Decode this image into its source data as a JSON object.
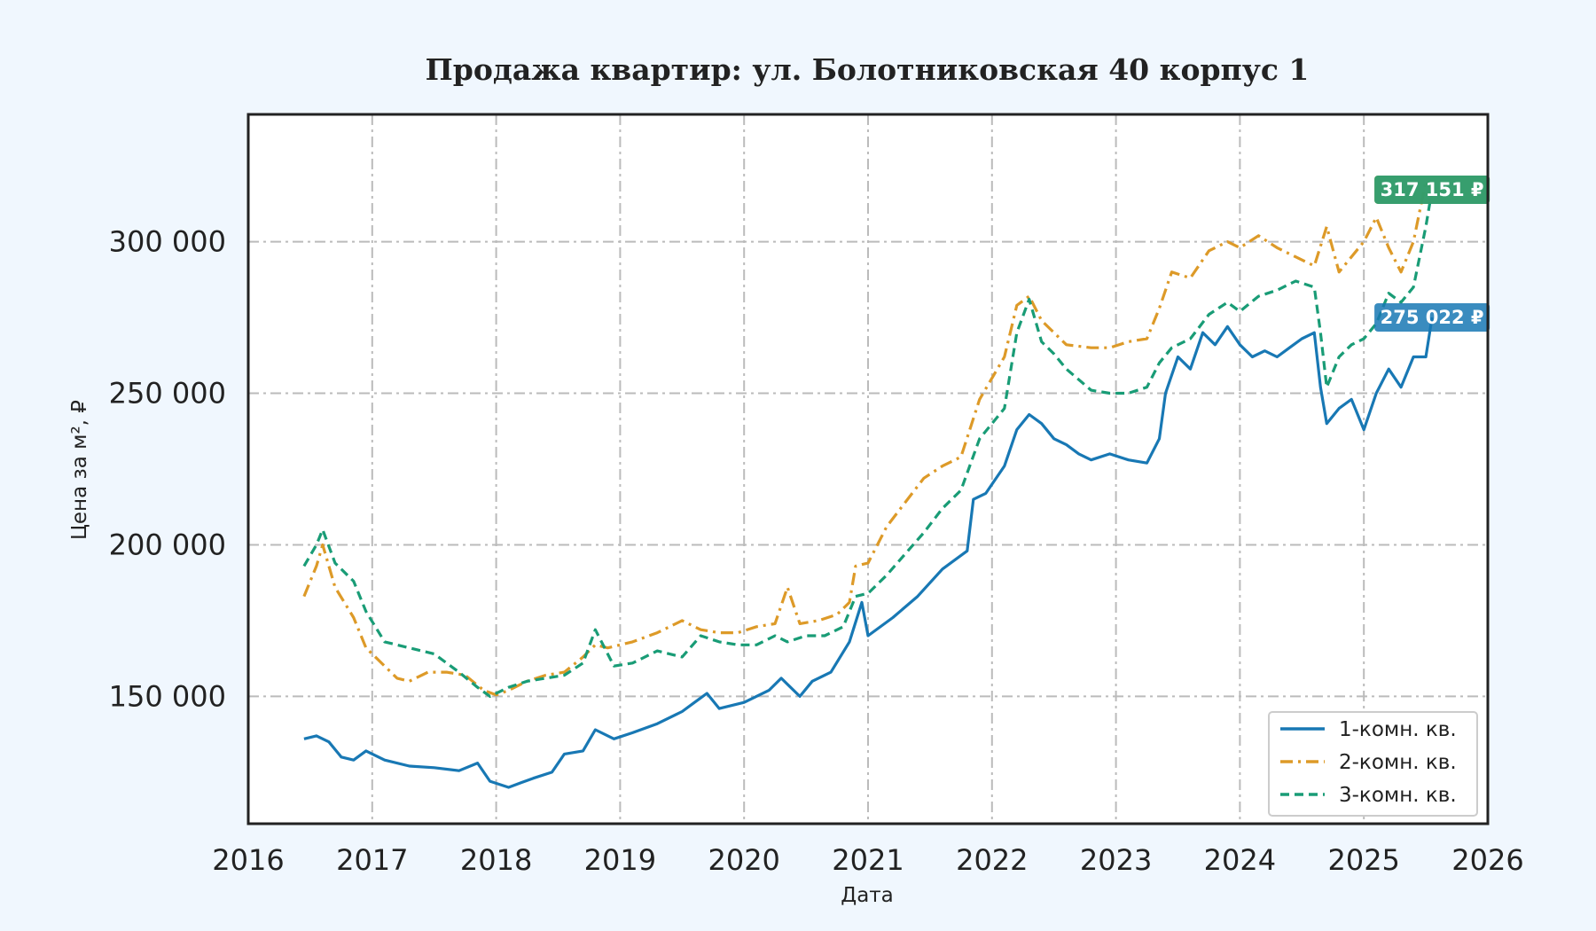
{
  "chart_data": {
    "type": "line",
    "title": "Продажа квартир: ул. Болотниковская 40 корпус 1",
    "xlabel": "Дата",
    "ylabel": "Цена за м², ₽",
    "xlim": [
      2016.0,
      2026.0
    ],
    "ylim": [
      108000,
      342000
    ],
    "x_ticks": [
      {
        "value": 2016,
        "label": "2016"
      },
      {
        "value": 2017,
        "label": "2017"
      },
      {
        "value": 2018,
        "label": "2018"
      },
      {
        "value": 2019,
        "label": "2019"
      },
      {
        "value": 2020,
        "label": "2020"
      },
      {
        "value": 2021,
        "label": "2021"
      },
      {
        "value": 2022,
        "label": "2022"
      },
      {
        "value": 2023,
        "label": "2023"
      },
      {
        "value": 2024,
        "label": "2024"
      },
      {
        "value": 2025,
        "label": "2025"
      },
      {
        "value": 2026,
        "label": "2026"
      }
    ],
    "y_ticks": [
      {
        "value": 150000,
        "label": "150 000"
      },
      {
        "value": 200000,
        "label": "200 000"
      },
      {
        "value": 250000,
        "label": "250 000"
      },
      {
        "value": 300000,
        "label": "300 000"
      }
    ],
    "grid": true,
    "legend_position": "bottom-right",
    "series": [
      {
        "name": "1-комн. кв.",
        "color": "#1878b4",
        "dash": "solid",
        "x": [
          2016.45,
          2016.55,
          2016.65,
          2016.75,
          2016.85,
          2016.95,
          2017.1,
          2017.3,
          2017.5,
          2017.7,
          2017.85,
          2017.95,
          2018.1,
          2018.2,
          2018.3,
          2018.45,
          2018.55,
          2018.7,
          2018.8,
          2018.95,
          2019.1,
          2019.3,
          2019.5,
          2019.6,
          2019.7,
          2019.8,
          2020.0,
          2020.2,
          2020.3,
          2020.45,
          2020.55,
          2020.7,
          2020.85,
          2020.95,
          2021.0,
          2021.2,
          2021.4,
          2021.6,
          2021.8,
          2021.85,
          2021.95,
          2022.1,
          2022.2,
          2022.3,
          2022.4,
          2022.5,
          2022.6,
          2022.7,
          2022.8,
          2022.95,
          2023.1,
          2023.25,
          2023.35,
          2023.4,
          2023.5,
          2023.6,
          2023.7,
          2023.8,
          2023.9,
          2024.0,
          2024.1,
          2024.2,
          2024.3,
          2024.4,
          2024.5,
          2024.6,
          2024.65,
          2024.7,
          2024.8,
          2024.9,
          2025.0,
          2025.1,
          2025.2,
          2025.3,
          2025.4,
          2025.5,
          2025.55
        ],
        "y": [
          136000,
          137000,
          135000,
          130000,
          129000,
          132000,
          129000,
          127000,
          126500,
          125500,
          128000,
          122000,
          120000,
          121500,
          123000,
          125000,
          131000,
          132000,
          139000,
          136000,
          138000,
          141000,
          145000,
          148000,
          151000,
          146000,
          148000,
          152000,
          156000,
          150000,
          155000,
          158000,
          168000,
          181000,
          170000,
          176000,
          183000,
          192000,
          198000,
          215000,
          217000,
          226000,
          238000,
          243000,
          240000,
          235000,
          233000,
          230000,
          228000,
          230000,
          228000,
          227000,
          235000,
          250000,
          262000,
          258000,
          270000,
          266000,
          272000,
          266000,
          262000,
          264000,
          262000,
          265000,
          268000,
          270000,
          252000,
          240000,
          245000,
          248000,
          238000,
          250000,
          258000,
          252000,
          262000,
          262000,
          275022
        ],
        "end_label": "275 022 ₽"
      },
      {
        "name": "2-комн. кв.",
        "color": "#dd9a28",
        "dash": "dashdot",
        "x": [
          2016.45,
          2016.55,
          2016.6,
          2016.7,
          2016.85,
          2016.95,
          2017.1,
          2017.2,
          2017.3,
          2017.45,
          2017.6,
          2017.75,
          2017.9,
          2018.0,
          2018.1,
          2018.25,
          2018.4,
          2018.55,
          2018.7,
          2018.8,
          2018.9,
          2019.1,
          2019.3,
          2019.5,
          2019.65,
          2019.8,
          2019.95,
          2020.1,
          2020.25,
          2020.35,
          2020.45,
          2020.6,
          2020.75,
          2020.85,
          2020.9,
          2021.0,
          2021.15,
          2021.3,
          2021.45,
          2021.6,
          2021.75,
          2021.9,
          2022.0,
          2022.1,
          2022.2,
          2022.3,
          2022.4,
          2022.5,
          2022.6,
          2022.8,
          2022.95,
          2023.1,
          2023.25,
          2023.35,
          2023.45,
          2023.6,
          2023.75,
          2023.9,
          2024.0,
          2024.15,
          2024.3,
          2024.45,
          2024.6,
          2024.7,
          2024.8,
          2024.9,
          2025.0,
          2025.1,
          2025.2,
          2025.3,
          2025.4,
          2025.5,
          2025.55
        ],
        "y": [
          183000,
          193000,
          200000,
          186000,
          176000,
          166000,
          160000,
          156000,
          155000,
          158000,
          158000,
          157000,
          152000,
          150500,
          152000,
          155000,
          157000,
          158000,
          163000,
          167000,
          166000,
          168000,
          171000,
          175000,
          172000,
          171000,
          171000,
          173000,
          174000,
          186000,
          174000,
          175000,
          177000,
          181000,
          193000,
          194000,
          206000,
          214000,
          222000,
          226000,
          229000,
          248000,
          255000,
          262000,
          279000,
          282000,
          274000,
          270000,
          266000,
          265000,
          265000,
          267000,
          268000,
          278000,
          290000,
          288000,
          297000,
          300000,
          298000,
          302000,
          298000,
          295000,
          292000,
          305000,
          290000,
          295000,
          300000,
          308000,
          298000,
          290000,
          300000,
          320000,
          317151
        ],
        "end_label": "317 151 ₽"
      },
      {
        "name": "3-комн. кв.",
        "color": "#199c76",
        "dash": "dashed",
        "x": [
          2016.45,
          2016.55,
          2016.6,
          2016.7,
          2016.85,
          2016.95,
          2017.1,
          2017.3,
          2017.5,
          2017.7,
          2017.85,
          2017.95,
          2018.1,
          2018.25,
          2018.4,
          2018.55,
          2018.7,
          2018.8,
          2018.95,
          2019.1,
          2019.3,
          2019.5,
          2019.65,
          2019.8,
          2019.95,
          2020.1,
          2020.25,
          2020.35,
          2020.5,
          2020.65,
          2020.8,
          2020.9,
          2021.0,
          2021.15,
          2021.3,
          2021.45,
          2021.6,
          2021.75,
          2021.9,
          2022.0,
          2022.1,
          2022.2,
          2022.3,
          2022.4,
          2022.5,
          2022.6,
          2022.8,
          2022.95,
          2023.1,
          2023.25,
          2023.35,
          2023.45,
          2023.6,
          2023.75,
          2023.9,
          2024.0,
          2024.15,
          2024.3,
          2024.45,
          2024.6,
          2024.65,
          2024.7,
          2024.8,
          2024.9,
          2025.0,
          2025.1,
          2025.2,
          2025.3,
          2025.4,
          2025.5,
          2025.55
        ],
        "y": [
          193000,
          200000,
          205000,
          194000,
          188000,
          178000,
          168000,
          166000,
          164000,
          158000,
          153000,
          150000,
          153000,
          155000,
          156000,
          157000,
          161000,
          172000,
          160000,
          161000,
          165000,
          163000,
          170000,
          168000,
          167000,
          167000,
          170000,
          168000,
          170000,
          170000,
          173000,
          183000,
          184000,
          190000,
          197000,
          204000,
          212000,
          218000,
          235000,
          240000,
          245000,
          270000,
          281000,
          267000,
          263000,
          258000,
          251000,
          250000,
          250000,
          252000,
          260000,
          265000,
          268000,
          276000,
          280000,
          277000,
          282000,
          284000,
          287000,
          285000,
          270000,
          252000,
          262000,
          266000,
          268000,
          273000,
          283000,
          280000,
          285000,
          305000,
          317151
        ],
        "end_label": "317 151 ₽"
      }
    ]
  }
}
